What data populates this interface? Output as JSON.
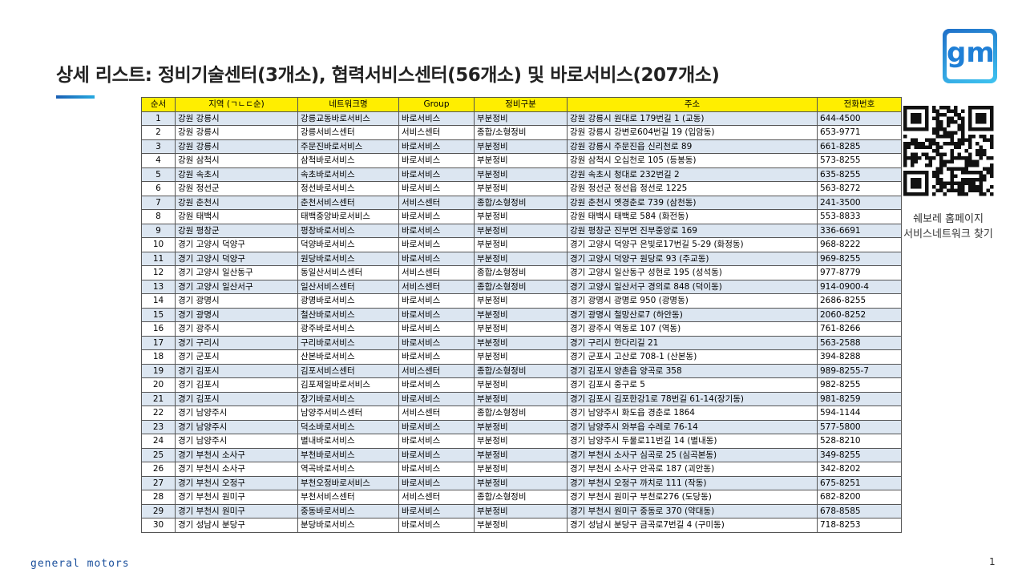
{
  "title": "상세 리스트: 정비기술센터(3개소), 협력서비스센터(56개소) 및 바로서비스(207개소)",
  "table": {
    "header": [
      "순서",
      "지역 (ㄱㄴㄷ순)",
      "네트워크명",
      "Group",
      "정비구분",
      "주소",
      "전화번호"
    ],
    "rows": [
      [
        1,
        "강원 강릉시",
        "강릉교동바로서비스",
        "바로서비스",
        "부분정비",
        "강원 강릉시 원대로 179번길 1 (교동)",
        "644-4500"
      ],
      [
        2,
        "강원 강릉시",
        "강릉서비스센터",
        "서비스센터",
        "종합/소형정비",
        "강원 강릉시 강변로604번길 19 (입암동)",
        "653-9771"
      ],
      [
        3,
        "강원 강릉시",
        "주문진바로서비스",
        "바로서비스",
        "부분정비",
        "강원 강릉시 주문진읍 신리천로 89",
        "661-8285"
      ],
      [
        4,
        "강원 삼척시",
        "삼척바로서비스",
        "바로서비스",
        "부분정비",
        "강원 삼척시 오십천로 105 (등봉동)",
        "573-8255"
      ],
      [
        5,
        "강원 속초시",
        "속초바로서비스",
        "바로서비스",
        "부분정비",
        "강원 속초시 청대로 232번길 2",
        "635-8255"
      ],
      [
        6,
        "강원 정선군",
        "정선바로서비스",
        "바로서비스",
        "부분정비",
        "강원 정선군 정선읍 정선로 1225",
        "563-8272"
      ],
      [
        7,
        "강원 춘천시",
        "춘천서비스센터",
        "서비스센터",
        "종합/소형정비",
        "강원 춘천시 옛경춘로 739 (삼천동)",
        "241-3500"
      ],
      [
        8,
        "강원 태백시",
        "태백중앙바로서비스",
        "바로서비스",
        "부분정비",
        "강원 태백시 태백로 584 (화전동)",
        "553-8833"
      ],
      [
        9,
        "강원 평창군",
        "평창바로서비스",
        "바로서비스",
        "부분정비",
        "강원 평창군 진부면 진부중앙로 169",
        "336-6691"
      ],
      [
        10,
        "경기 고양시 덕양구",
        "덕양바로서비스",
        "바로서비스",
        "부분정비",
        "경기 고양시 덕양구 은빛로17번길 5-29 (화정동)",
        "968-8222"
      ],
      [
        11,
        "경기 고양시 덕양구",
        "원당바로서비스",
        "바로서비스",
        "부분정비",
        "경기 고양시 덕양구 원당로 93 (주교동)",
        "969-8255"
      ],
      [
        12,
        "경기 고양시 일산동구",
        "동일산서비스센터",
        "서비스센터",
        "종합/소형정비",
        "경기 고양시 일산동구 성현로 195 (성석동)",
        "977-8779"
      ],
      [
        13,
        "경기 고양시 일산서구",
        "일산서비스센터",
        "서비스센터",
        "종합/소형정비",
        "경기 고양시 일산서구 경의로 848 (덕이동)",
        "914-0900-4"
      ],
      [
        14,
        "경기 광명시",
        "광명바로서비스",
        "바로서비스",
        "부분정비",
        "경기 광명시 광명로 950 (광명동)",
        "2686-8255"
      ],
      [
        15,
        "경기 광명시",
        "철산바로서비스",
        "바로서비스",
        "부분정비",
        "경기 광명시 철망산로7 (하안동)",
        "2060-8252"
      ],
      [
        16,
        "경기 광주시",
        "광주바로서비스",
        "바로서비스",
        "부분정비",
        "경기 광주시 역동로 107 (역동)",
        "761-8266"
      ],
      [
        17,
        "경기 구리시",
        "구리바로서비스",
        "바로서비스",
        "부분정비",
        "경기 구리시 한다리길 21",
        "563-2588"
      ],
      [
        18,
        "경기 군포시",
        "산본바로서비스",
        "바로서비스",
        "부분정비",
        "경기 군포시 고산로 708-1 (산본동)",
        "394-8288"
      ],
      [
        19,
        "경기 김포시",
        "김포서비스센터",
        "서비스센터",
        "종합/소형정비",
        "경기 김포시 양촌읍 양곡로 358",
        "989-8255-7"
      ],
      [
        20,
        "경기 김포시",
        "김포제일바로서비스",
        "바로서비스",
        "부분정비",
        "경기 김포시 중구로 5",
        "982-8255"
      ],
      [
        21,
        "경기 김포시",
        "장기바로서비스",
        "바로서비스",
        "부분정비",
        "경기 김포시 김포한강1로 78번길 61-14(장기동)",
        "981-8259"
      ],
      [
        22,
        "경기 남양주시",
        "남양주서비스센터",
        "서비스센터",
        "종합/소형정비",
        "경기 남양주시 화도읍 경춘로 1864",
        "594-1144"
      ],
      [
        23,
        "경기 남양주시",
        "덕소바로서비스",
        "바로서비스",
        "부분정비",
        "경기 남양주시 와부읍 수레로 76-14",
        "577-5800"
      ],
      [
        24,
        "경기 남양주시",
        "별내바로서비스",
        "바로서비스",
        "부분정비",
        "경기 남양주시 두물로11번길 14 (별내동)",
        "528-8210"
      ],
      [
        25,
        "경기 부천시 소사구",
        "부천바로서비스",
        "바로서비스",
        "부분정비",
        "경기 부천시 소사구 심곡로 25 (심곡본동)",
        "349-8255"
      ],
      [
        26,
        "경기 부천시 소사구",
        "역곡바로서비스",
        "바로서비스",
        "부분정비",
        "경기 부천시 소사구 안곡로 187 (괴안동)",
        "342-8202"
      ],
      [
        27,
        "경기 부천시 오정구",
        "부천오정바로서비스",
        "바로서비스",
        "부분정비",
        "경기 부천시 오정구 까치로 111 (작동)",
        "675-8251"
      ],
      [
        28,
        "경기 부천시 원미구",
        "부천서비스센터",
        "서비스센터",
        "종합/소형정비",
        "경기 부천시 원미구 부천로276 (도당동)",
        "682-8200"
      ],
      [
        29,
        "경기 부천시 원미구",
        "중동바로서비스",
        "바로서비스",
        "부분정비",
        "경기 부천시 원미구 중동로 370 (약대동)",
        "678-8585"
      ],
      [
        30,
        "경기 성남시 분당구",
        "분당바로서비스",
        "바로서비스",
        "부분정비",
        "경기 성남시 분당구 금곡로7번길 4 (구미동)",
        "718-8253"
      ]
    ]
  },
  "sidebar": {
    "line1": "쉐보레 홈페이지",
    "line2": "서비스네트워크 찾기"
  },
  "logo": "gm",
  "footer": {
    "brand": "general motors",
    "page": 1
  }
}
